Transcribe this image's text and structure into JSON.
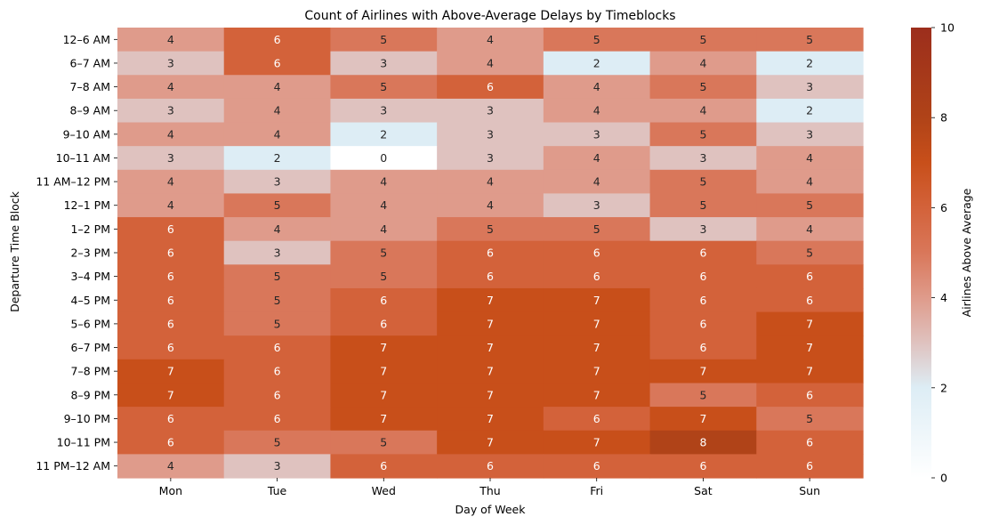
{
  "chart_data": {
    "type": "heatmap",
    "title": "Count of Airlines with Above-Average Delays by Timeblocks",
    "xlabel": "Day of Week",
    "ylabel": "Departure Time Block",
    "x_categories": [
      "Mon",
      "Tue",
      "Wed",
      "Thu",
      "Fri",
      "Sat",
      "Sun"
    ],
    "y_categories": [
      "12–6 AM",
      "6–7 AM",
      "7–8 AM",
      "8–9 AM",
      "9–10 AM",
      "10–11 AM",
      "11 AM–12 PM",
      "12–1 PM",
      "1–2 PM",
      "2–3 PM",
      "3–4 PM",
      "4–5 PM",
      "5–6 PM",
      "6–7 PM",
      "7–8 PM",
      "8–9 PM",
      "9–10 PM",
      "10–11 PM",
      "11 PM–12 AM"
    ],
    "values": [
      [
        4,
        6,
        5,
        4,
        5,
        5,
        5
      ],
      [
        3,
        6,
        3,
        4,
        2,
        4,
        2
      ],
      [
        4,
        4,
        5,
        6,
        4,
        5,
        3
      ],
      [
        3,
        4,
        3,
        3,
        4,
        4,
        2
      ],
      [
        4,
        4,
        2,
        3,
        3,
        5,
        3
      ],
      [
        3,
        2,
        0,
        3,
        4,
        3,
        4
      ],
      [
        4,
        3,
        4,
        4,
        4,
        5,
        4
      ],
      [
        4,
        5,
        4,
        4,
        3,
        5,
        5
      ],
      [
        6,
        4,
        4,
        5,
        5,
        3,
        4
      ],
      [
        6,
        3,
        5,
        6,
        6,
        6,
        5
      ],
      [
        6,
        5,
        5,
        6,
        6,
        6,
        6
      ],
      [
        6,
        5,
        6,
        7,
        7,
        6,
        6
      ],
      [
        6,
        5,
        6,
        7,
        7,
        6,
        7
      ],
      [
        6,
        6,
        7,
        7,
        7,
        6,
        7
      ],
      [
        7,
        6,
        7,
        7,
        7,
        7,
        7
      ],
      [
        7,
        6,
        7,
        7,
        7,
        5,
        6
      ],
      [
        6,
        6,
        7,
        7,
        6,
        7,
        5
      ],
      [
        6,
        5,
        5,
        7,
        7,
        8,
        6
      ],
      [
        4,
        3,
        6,
        6,
        6,
        6,
        6
      ]
    ],
    "colorbar": {
      "label": "Airlines Above Average",
      "range": [
        0,
        10
      ],
      "ticks": [
        0,
        2,
        4,
        6,
        8,
        10
      ]
    },
    "colors": {
      "0": "#ffffff",
      "2": "#ddedf5",
      "3": "#dfc2bf",
      "4": "#df9b8b",
      "5": "#d9775a",
      "6": "#d3623a",
      "7": "#c84f1a",
      "8": "#b04318",
      "10": "#9c2e1c"
    }
  }
}
